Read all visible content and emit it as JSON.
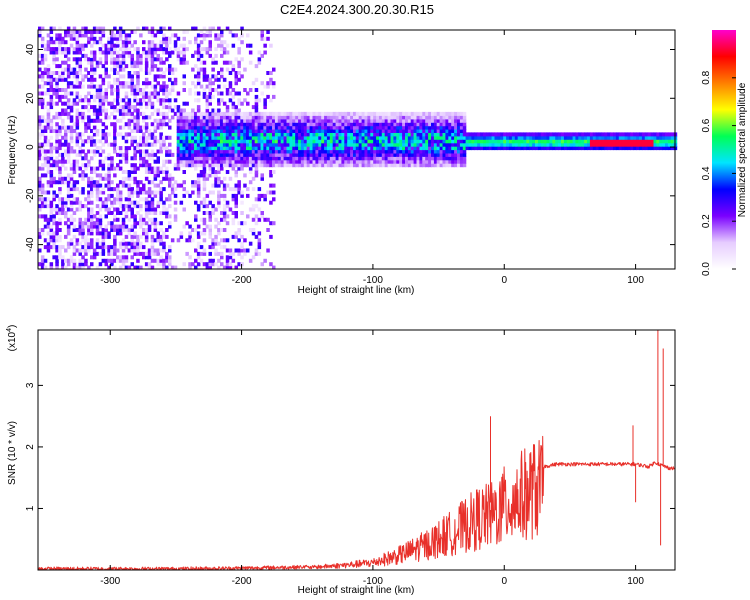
{
  "title": "C2E4.2024.300.20.30.R15",
  "chart_data": [
    {
      "type": "heatmap",
      "xlabel": "Height of straight line (km)",
      "ylabel": "Frequency (Hz)",
      "xlim": [
        -355,
        130
      ],
      "ylim": [
        -50,
        48
      ],
      "xticks": [
        "-300",
        "-200",
        "-100",
        "0",
        "100"
      ],
      "xtick_values": [
        -300,
        -200,
        -100,
        0,
        100
      ],
      "yticks": [
        "-40",
        "-20",
        "0",
        "20",
        "40"
      ],
      "ytick_values": [
        -40,
        -20,
        0,
        20,
        40
      ],
      "colorbar": {
        "label": "Normalized spectral amplitude",
        "range": [
          0,
          1
        ],
        "ticks": [
          "0.0",
          "0.2",
          "0.4",
          "0.6",
          "0.8"
        ],
        "tick_values": [
          0,
          0.2,
          0.4,
          0.6,
          0.8
        ],
        "colors": [
          "#ffffff",
          "#e6ccff",
          "#7a00ff",
          "#0000ff",
          "#00e5ff",
          "#00ff55",
          "#ffff00",
          "#ff7f00",
          "#ff0000",
          "#ff00cc"
        ]
      },
      "features": [
        {
          "region": "broadband noise",
          "x_range": [
            -355,
            -175
          ],
          "freq_range": [
            -50,
            48
          ],
          "amplitude": 0.1
        },
        {
          "region": "wide band",
          "x_range": [
            -250,
            -30
          ],
          "center_hz": 2,
          "half_width_hz": 10,
          "amplitude": 0.3
        },
        {
          "region": "narrow line",
          "x_range": [
            -30,
            130
          ],
          "center_hz": 1.5,
          "half_width_hz": 3,
          "amplitude": 0.6
        },
        {
          "region": "peak line",
          "x_range": [
            65,
            112
          ],
          "center_hz": 1.5,
          "amplitude": 0.92
        }
      ]
    },
    {
      "type": "line",
      "xlabel": "Height of straight line (km)",
      "ylabel": "SNR (10 * v/v)",
      "y_multiplier": "(x10",
      "y_multiplier_exp": "4",
      "y_multiplier_close": ")",
      "xlim": [
        -355,
        130
      ],
      "ylim": [
        0,
        3.9
      ],
      "xticks": [
        "-300",
        "-200",
        "-100",
        "0",
        "100"
      ],
      "xtick_values": [
        -300,
        -200,
        -100,
        0,
        100
      ],
      "yticks": [
        "1",
        "2",
        "3"
      ],
      "ytick_values": [
        1,
        2,
        3
      ],
      "color": "#e8302a",
      "envelope_x": [
        -355,
        -250,
        -200,
        -150,
        -120,
        -100,
        -80,
        -60,
        -40,
        -30,
        -20,
        -10,
        0,
        10,
        20,
        30,
        40,
        60,
        80,
        100,
        110,
        115,
        120,
        125,
        130
      ],
      "envelope_y": [
        0.02,
        0.02,
        0.03,
        0.05,
        0.1,
        0.15,
        0.3,
        0.5,
        0.75,
        0.9,
        1.05,
        1.1,
        1.3,
        1.45,
        1.6,
        1.68,
        1.72,
        1.72,
        1.72,
        1.72,
        1.68,
        1.75,
        1.7,
        1.66,
        1.65
      ],
      "spikes": [
        {
          "x": -10.5,
          "y": 2.5
        },
        {
          "x": 98,
          "y": 2.35
        },
        {
          "x": 100,
          "y": 1.1
        },
        {
          "x": 117,
          "y": 3.9
        },
        {
          "x": 119,
          "y": 0.4
        },
        {
          "x": 121,
          "y": 3.6
        }
      ]
    }
  ]
}
